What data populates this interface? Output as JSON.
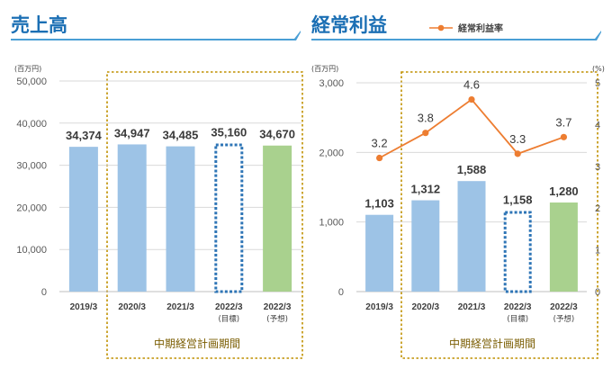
{
  "colors": {
    "bar": "#9dc3e6",
    "forecast_bar": "#a9d18e",
    "target_outline": "#2e75b6",
    "line": "#ed7d31",
    "plan_box": "#bf9000",
    "title": "#1b6fb4",
    "grid": "#d9d9d9"
  },
  "chart_data": [
    {
      "type": "bar",
      "title": "売上高",
      "unit": "(百万円)",
      "categories": [
        {
          "label": "2019/3",
          "sub": ""
        },
        {
          "label": "2020/3",
          "sub": ""
        },
        {
          "label": "2021/3",
          "sub": ""
        },
        {
          "label": "2022/3",
          "sub": "(目標)"
        },
        {
          "label": "2022/3",
          "sub": "(予想)"
        }
      ],
      "values": [
        34374,
        34947,
        34485,
        35160,
        34670
      ],
      "value_labels": [
        "34,374",
        "34,947",
        "34,485",
        "35,160",
        "34,670"
      ],
      "bar_styles": [
        "actual",
        "actual",
        "actual",
        "target",
        "forecast"
      ],
      "ylim": [
        0,
        50000
      ],
      "yticks": [
        0,
        10000,
        20000,
        30000,
        40000,
        50000
      ],
      "ytick_labels": [
        "0",
        "10,000",
        "20,000",
        "30,000",
        "40,000",
        "50,000"
      ],
      "grid": true,
      "period_label": "中期経営計画期間"
    },
    {
      "type": "bar+line",
      "title": "経常利益",
      "unit": "(百万円)",
      "unit_right": "(%)",
      "legend": {
        "label": "経常利益率",
        "position": "top-right"
      },
      "categories": [
        {
          "label": "2019/3",
          "sub": ""
        },
        {
          "label": "2020/3",
          "sub": ""
        },
        {
          "label": "2021/3",
          "sub": ""
        },
        {
          "label": "2022/3",
          "sub": "(目標)"
        },
        {
          "label": "2022/3",
          "sub": "(予想)"
        }
      ],
      "values": [
        1103,
        1312,
        1588,
        1158,
        1280
      ],
      "value_labels": [
        "1,103",
        "1,312",
        "1,588",
        "1,158",
        "1,280"
      ],
      "bar_styles": [
        "actual",
        "actual",
        "actual",
        "target",
        "forecast"
      ],
      "ylim": [
        0,
        3000
      ],
      "yticks": [
        0,
        1000,
        2000,
        3000
      ],
      "ytick_labels": [
        "0",
        "1,000",
        "2,000",
        "3,000"
      ],
      "line_values": [
        3.2,
        3.8,
        4.6,
        3.3,
        3.7
      ],
      "line_labels": [
        "3.2",
        "3.8",
        "4.6",
        "3.3",
        "3.7"
      ],
      "ylim_right": [
        0,
        5
      ],
      "yticks_right": [
        "0",
        "1",
        "2",
        "3",
        "4",
        "5"
      ],
      "grid": true,
      "period_label": "中期経営計画期間"
    }
  ]
}
